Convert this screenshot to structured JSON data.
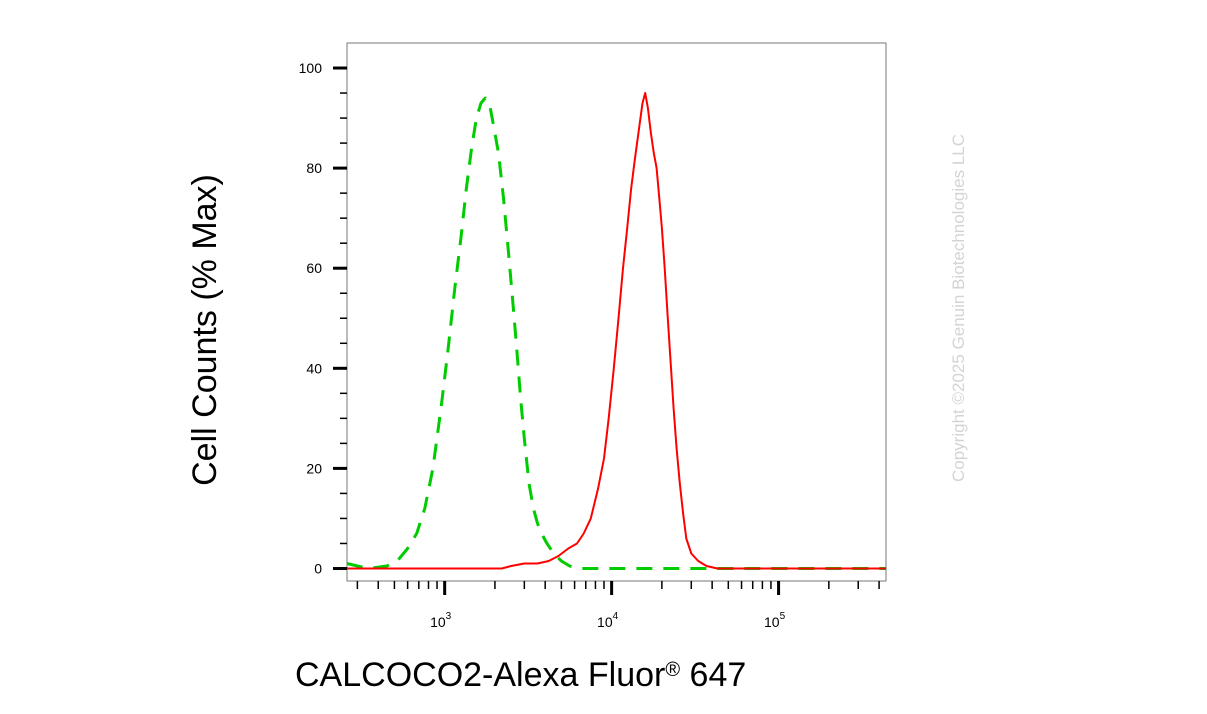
{
  "chart_data": {
    "type": "line",
    "title": "",
    "xlabel": "CALCOCO2-Alexa Fluor",
    "xlabel_mark": "®",
    "xlabel_suffix": " 647",
    "ylabel": "Cell Counts (% Max)",
    "x_scale": "log",
    "xlim": [
      260,
      440000
    ],
    "ylim": [
      -2.5,
      105
    ],
    "yticks": [
      0,
      20,
      40,
      60,
      80,
      100
    ],
    "xticks": [
      {
        "value": 1000,
        "base": "10",
        "exp": "3"
      },
      {
        "value": 10000,
        "base": "10",
        "exp": "4"
      },
      {
        "value": 100000,
        "base": "10",
        "exp": "5"
      }
    ],
    "grid": false,
    "series": [
      {
        "color": "#00cc00",
        "style": "dashed",
        "points": [
          [
            260,
            1
          ],
          [
            300,
            0.5
          ],
          [
            350,
            0
          ],
          [
            450,
            0.5
          ],
          [
            520,
            1.5
          ],
          [
            600,
            4
          ],
          [
            680,
            7
          ],
          [
            760,
            12
          ],
          [
            850,
            20
          ],
          [
            950,
            32
          ],
          [
            1050,
            44
          ],
          [
            1150,
            56
          ],
          [
            1250,
            66
          ],
          [
            1350,
            76
          ],
          [
            1450,
            84
          ],
          [
            1550,
            90
          ],
          [
            1650,
            93
          ],
          [
            1750,
            94
          ],
          [
            1850,
            93
          ],
          [
            1950,
            89
          ],
          [
            2100,
            83
          ],
          [
            2250,
            74
          ],
          [
            2400,
            64
          ],
          [
            2550,
            54
          ],
          [
            2700,
            44
          ],
          [
            2850,
            34
          ],
          [
            3000,
            26
          ],
          [
            3200,
            17
          ],
          [
            3400,
            12
          ],
          [
            3600,
            9
          ],
          [
            3800,
            7
          ],
          [
            4100,
            5
          ],
          [
            4500,
            3
          ],
          [
            5000,
            1.5
          ],
          [
            5600,
            0.5
          ],
          [
            6500,
            0
          ],
          [
            440000,
            0
          ]
        ]
      },
      {
        "color": "#ff0000",
        "style": "solid",
        "points": [
          [
            260,
            0
          ],
          [
            1500,
            0
          ],
          [
            2200,
            0
          ],
          [
            2500,
            0.5
          ],
          [
            3000,
            1
          ],
          [
            3600,
            1
          ],
          [
            4200,
            1.5
          ],
          [
            4800,
            2.5
          ],
          [
            5500,
            4
          ],
          [
            6200,
            5
          ],
          [
            6800,
            7
          ],
          [
            7500,
            10
          ],
          [
            8300,
            16
          ],
          [
            9000,
            22
          ],
          [
            9600,
            30
          ],
          [
            10300,
            40
          ],
          [
            11000,
            50
          ],
          [
            11700,
            60
          ],
          [
            12400,
            68
          ],
          [
            13100,
            76
          ],
          [
            13800,
            82
          ],
          [
            14600,
            88
          ],
          [
            15300,
            93
          ],
          [
            15900,
            95
          ],
          [
            16500,
            92
          ],
          [
            17200,
            87
          ],
          [
            17900,
            83
          ],
          [
            18600,
            80
          ],
          [
            19300,
            74
          ],
          [
            20000,
            68
          ],
          [
            20800,
            60
          ],
          [
            21700,
            50
          ],
          [
            22600,
            41
          ],
          [
            23500,
            32
          ],
          [
            24500,
            24
          ],
          [
            25600,
            17
          ],
          [
            26800,
            11
          ],
          [
            28000,
            6
          ],
          [
            30000,
            3
          ],
          [
            33000,
            1.5
          ],
          [
            37000,
            0.5
          ],
          [
            43000,
            0
          ],
          [
            440000,
            0
          ]
        ]
      }
    ]
  },
  "watermark": "Copyright ©2025 Genuin Biotechnologies LLC"
}
